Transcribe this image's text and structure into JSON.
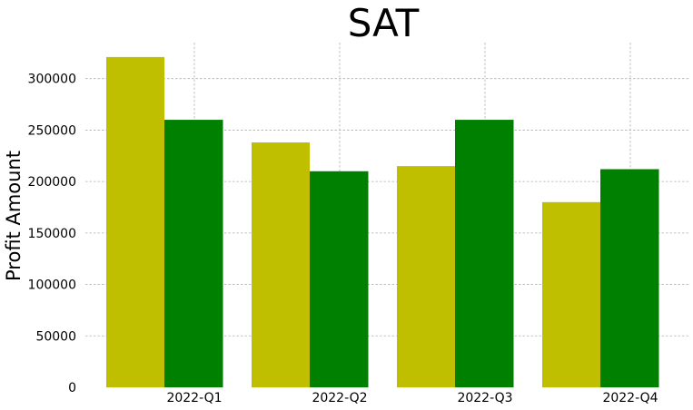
{
  "chart_data": {
    "type": "bar",
    "title": "SAT",
    "xlabel": "",
    "ylabel": "Profit Amount",
    "categories": [
      "2022-Q1",
      "2022-Q2",
      "2022-Q3",
      "2022-Q4"
    ],
    "series": [
      {
        "values": [
          321000,
          238000,
          215000,
          180000
        ],
        "color": "#bfbf00"
      },
      {
        "values": [
          260000,
          210000,
          260000,
          212000
        ],
        "color": "#008000"
      }
    ],
    "ylim": [
      0,
      335000
    ],
    "yticks": [
      "0",
      "50000",
      "100000",
      "150000",
      "200000",
      "250000",
      "300000"
    ],
    "grid": true,
    "legend": "none"
  }
}
